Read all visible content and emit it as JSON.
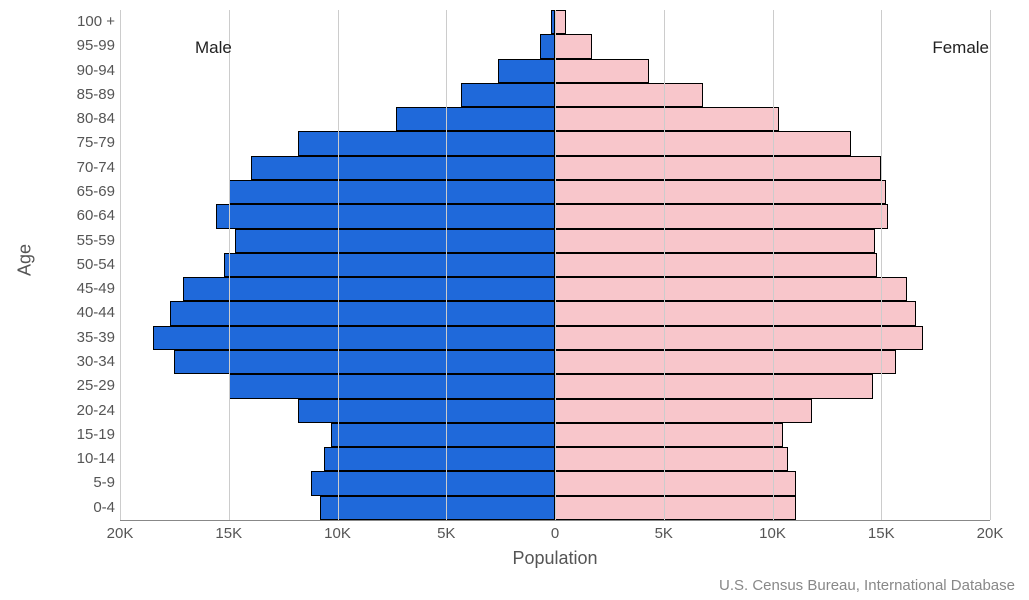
{
  "chart": {
    "type": "population-pyramid",
    "background_color": "#ffffff",
    "grid_color": "#cccccc",
    "text_color": "#555555",
    "font_family": "Segoe UI, Helvetica Neue, Arial, sans-serif",
    "series_label_color": "#222222",
    "y_axis": {
      "title": "Age",
      "title_fontsize": 18,
      "tick_fontsize": 15
    },
    "x_axis": {
      "title": "Population",
      "title_fontsize": 18,
      "tick_fontsize": 15,
      "min": -20000,
      "max": 20000,
      "tick_step": 5000,
      "tick_labels": [
        "20K",
        "15K",
        "10K",
        "5K",
        "0",
        "5K",
        "10K",
        "15K",
        "20K"
      ]
    },
    "bar_border_color": "#000000",
    "bar_border_width": 1,
    "male": {
      "label": "Male",
      "color": "#1f69da",
      "label_position": "top-left"
    },
    "female": {
      "label": "Female",
      "color": "#f8c6cb",
      "label_position": "top-right"
    },
    "age_groups": [
      {
        "label": "0-4",
        "male": 10800,
        "female": 11100
      },
      {
        "label": "5-9",
        "male": 11200,
        "female": 11100
      },
      {
        "label": "10-14",
        "male": 10600,
        "female": 10700
      },
      {
        "label": "15-19",
        "male": 10300,
        "female": 10500
      },
      {
        "label": "20-24",
        "male": 11800,
        "female": 11800
      },
      {
        "label": "25-29",
        "male": 15000,
        "female": 14600
      },
      {
        "label": "30-34",
        "male": 17500,
        "female": 15700
      },
      {
        "label": "35-39",
        "male": 18500,
        "female": 16900
      },
      {
        "label": "40-44",
        "male": 17700,
        "female": 16600
      },
      {
        "label": "45-49",
        "male": 17100,
        "female": 16200
      },
      {
        "label": "50-54",
        "male": 15200,
        "female": 14800
      },
      {
        "label": "55-59",
        "male": 14700,
        "female": 14700
      },
      {
        "label": "60-64",
        "male": 15600,
        "female": 15300
      },
      {
        "label": "65-69",
        "male": 15000,
        "female": 15200
      },
      {
        "label": "70-74",
        "male": 14000,
        "female": 15000
      },
      {
        "label": "75-79",
        "male": 11800,
        "female": 13600
      },
      {
        "label": "80-84",
        "male": 7300,
        "female": 10300
      },
      {
        "label": "85-89",
        "male": 4300,
        "female": 6800
      },
      {
        "label": "90-94",
        "male": 2600,
        "female": 4300
      },
      {
        "label": "95-99",
        "male": 700,
        "female": 1700
      },
      {
        "label": "100 +",
        "male": 200,
        "female": 500
      }
    ],
    "source_text": "U.S. Census Bureau, International Database",
    "source_color": "#888888",
    "source_fontsize": 15
  }
}
